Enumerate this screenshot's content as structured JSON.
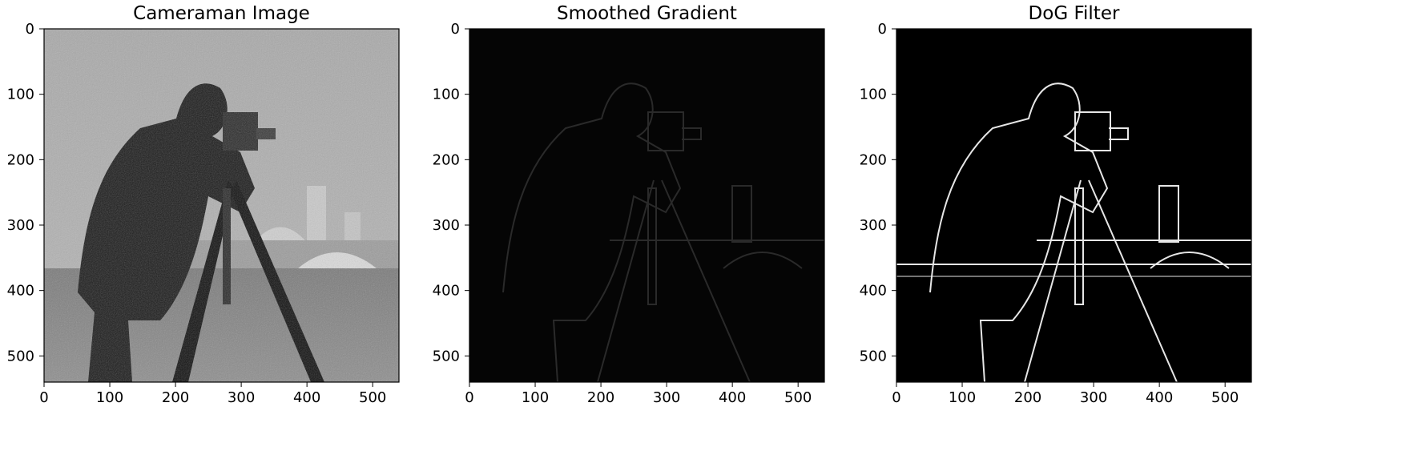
{
  "chart_data": [
    {
      "type": "heatmap",
      "title": "Cameraman Image",
      "xlim": [
        0,
        540
      ],
      "ylim": [
        540,
        0
      ],
      "xticks": [
        0,
        100,
        200,
        300,
        400,
        500
      ],
      "yticks": [
        0,
        100,
        200,
        300,
        400,
        500
      ],
      "colormap": "gray",
      "grid": false
    },
    {
      "type": "heatmap",
      "title": "Smoothed Gradient",
      "xlim": [
        0,
        540
      ],
      "ylim": [
        540,
        0
      ],
      "xticks": [
        0,
        100,
        200,
        300,
        400,
        500
      ],
      "yticks": [
        0,
        100,
        200,
        300,
        400,
        500
      ],
      "colormap": "gray",
      "grid": false
    },
    {
      "type": "heatmap",
      "title": "DoG Filter",
      "xlim": [
        0,
        540
      ],
      "ylim": [
        540,
        0
      ],
      "xticks": [
        0,
        100,
        200,
        300,
        400,
        500
      ],
      "yticks": [
        0,
        100,
        200,
        300,
        400,
        500
      ],
      "colormap": "gray",
      "grid": false
    }
  ]
}
